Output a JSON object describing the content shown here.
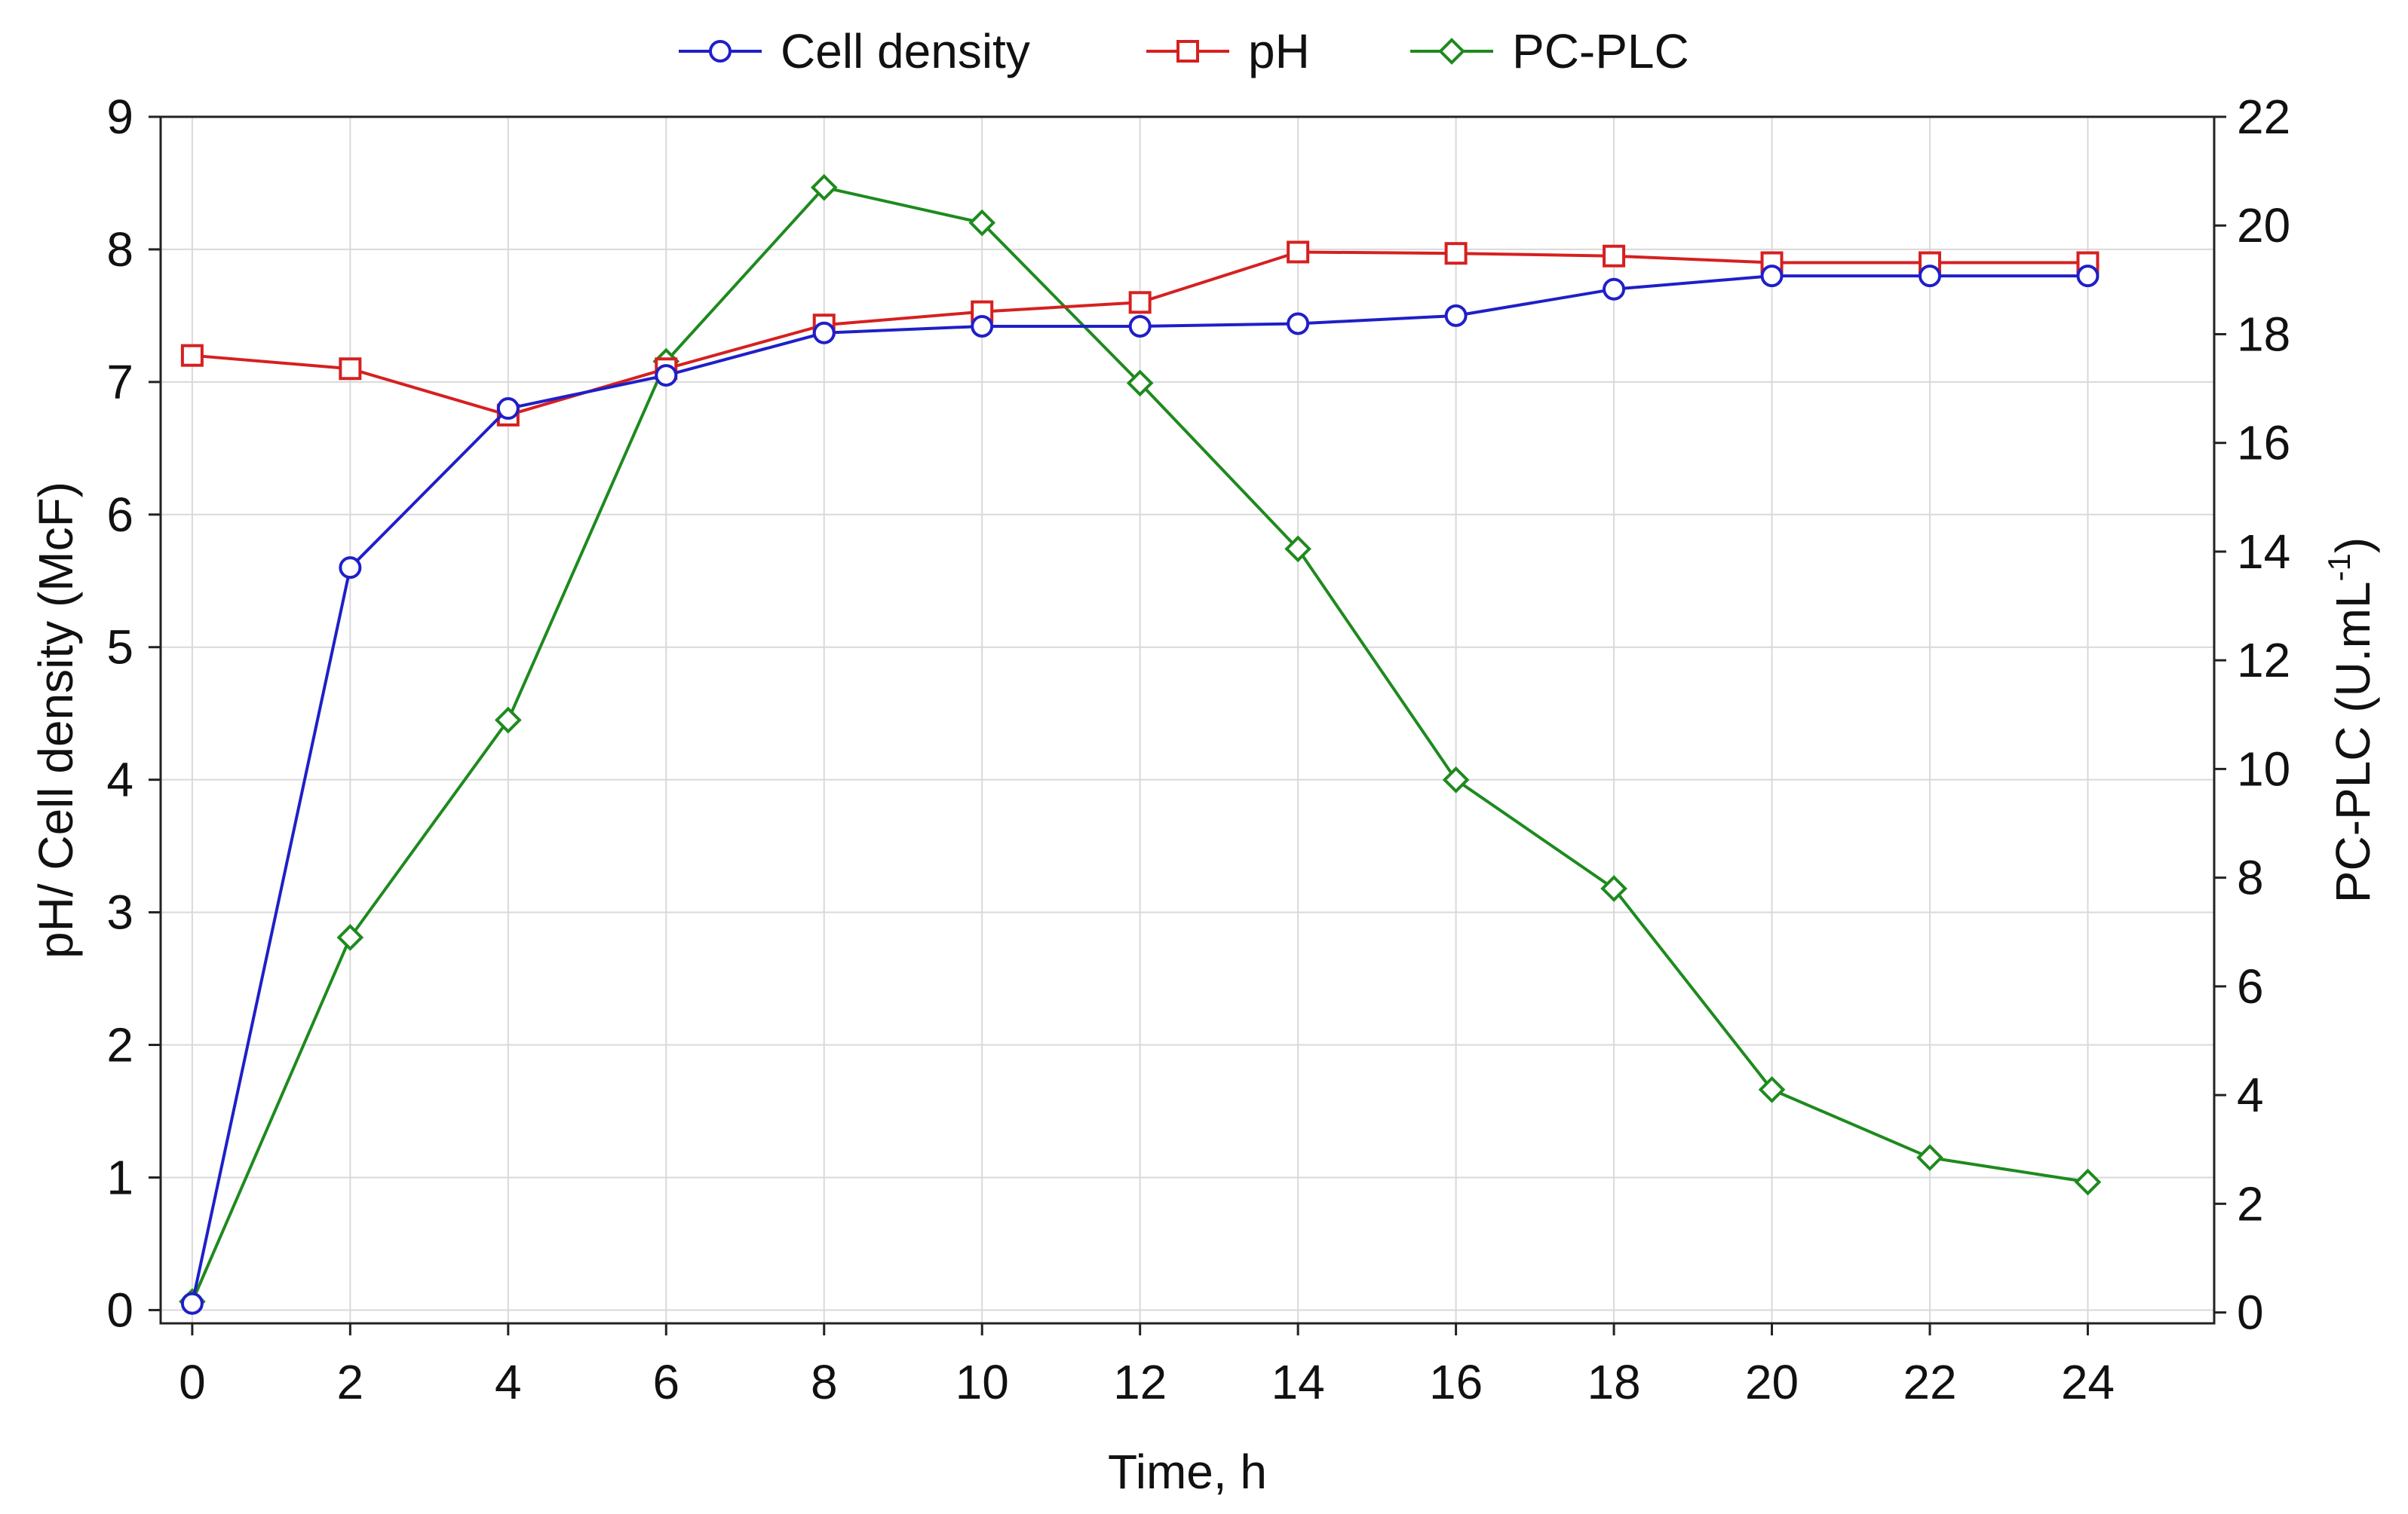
{
  "chart_data": {
    "type": "line",
    "x": [
      0,
      2,
      4,
      6,
      8,
      10,
      12,
      14,
      16,
      18,
      20,
      22,
      24
    ],
    "xlabel": "Time, h",
    "xlim": [
      -0.4,
      25.6
    ],
    "x_ticks": [
      "0",
      "2",
      "4",
      "6",
      "8",
      "10",
      "12",
      "14",
      "16",
      "18",
      "20",
      "22",
      "24"
    ],
    "y_left": {
      "label": "pH/ Cell density (McF)",
      "lim": [
        -0.1,
        9
      ],
      "ticks": [
        "0",
        "1",
        "2",
        "3",
        "4",
        "5",
        "6",
        "7",
        "8",
        "9"
      ]
    },
    "y_right": {
      "label_main": "PC-PLC (U.mL",
      "label_sup": "-1",
      "label_end": ")",
      "lim": [
        -0.2,
        22
      ],
      "ticks": [
        "0",
        "2",
        "4",
        "6",
        "8",
        "10",
        "12",
        "14",
        "16",
        "18",
        "20",
        "22"
      ]
    },
    "grid": true,
    "legend_position": "top-center",
    "series": [
      {
        "name": "Cell density",
        "axis": "left",
        "color": "#1f1fc8",
        "marker": "circle",
        "values": [
          0.05,
          5.6,
          6.8,
          7.05,
          7.37,
          7.42,
          7.42,
          7.44,
          7.5,
          7.7,
          7.8,
          7.8,
          7.8
        ]
      },
      {
        "name": "pH",
        "axis": "left",
        "color": "#d62020",
        "marker": "square",
        "values": [
          7.2,
          7.1,
          6.75,
          7.1,
          7.43,
          7.53,
          7.6,
          7.98,
          7.97,
          7.95,
          7.9,
          7.9,
          7.9
        ]
      },
      {
        "name": "PC-PLC",
        "axis": "right",
        "color": "#1e8a1e",
        "marker": "diamond",
        "values": [
          0.2,
          6.9,
          10.9,
          17.5,
          20.7,
          20.05,
          17.1,
          14.05,
          9.8,
          7.8,
          4.1,
          2.85,
          2.4
        ]
      }
    ]
  }
}
